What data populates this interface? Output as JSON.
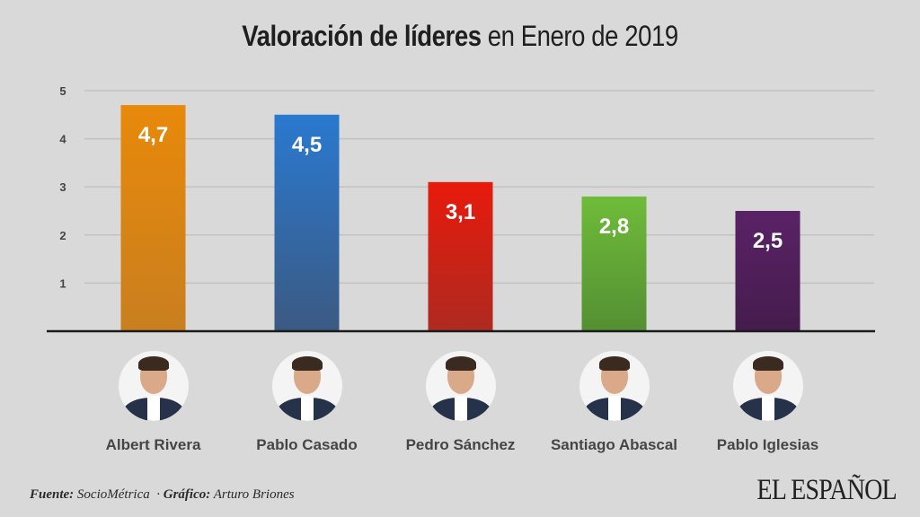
{
  "title": {
    "bold_part": "Valoración de líderes",
    "regular_part": " en Enero de 2019"
  },
  "chart_data": {
    "type": "bar",
    "title": "Valoración de líderes en Enero de 2019",
    "xlabel": "",
    "ylabel": "",
    "ylim": [
      0,
      5
    ],
    "yticks": [
      1,
      2,
      3,
      4,
      5
    ],
    "grid": true,
    "categories": [
      "Albert Rivera",
      "Pablo Casado",
      "Pedro Sánchez",
      "Santiago Abascal",
      "Pablo Iglesias"
    ],
    "values": [
      4.7,
      4.5,
      3.1,
      2.8,
      2.5
    ],
    "value_labels": [
      "4,7",
      "4,5",
      "3,1",
      "2,8",
      "2,5"
    ],
    "colors": [
      {
        "top": "#e8890a",
        "bottom": "#c97f1f"
      },
      {
        "top": "#2a79d0",
        "bottom": "#3b5a82"
      },
      {
        "top": "#e81a0c",
        "bottom": "#ae2a20"
      },
      {
        "top": "#6fbc3a",
        "bottom": "#548f32"
      },
      {
        "top": "#5a2266",
        "bottom": "#451c4d"
      }
    ]
  },
  "avatars": [
    {
      "name": "Albert Rivera",
      "icon": "portrait-photo"
    },
    {
      "name": "Pablo Casado",
      "icon": "portrait-photo"
    },
    {
      "name": "Pedro Sánchez",
      "icon": "portrait-photo"
    },
    {
      "name": "Santiago Abascal",
      "icon": "portrait-photo"
    },
    {
      "name": "Pablo Iglesias",
      "icon": "portrait-photo"
    }
  ],
  "footer": {
    "source_label": "Fuente:",
    "source_value": " SocioMétrica",
    "separator": "  · ",
    "graphic_label": "Gráfico:",
    "graphic_value": " Arturo Briones"
  },
  "logo": "EL ESPAÑOL"
}
